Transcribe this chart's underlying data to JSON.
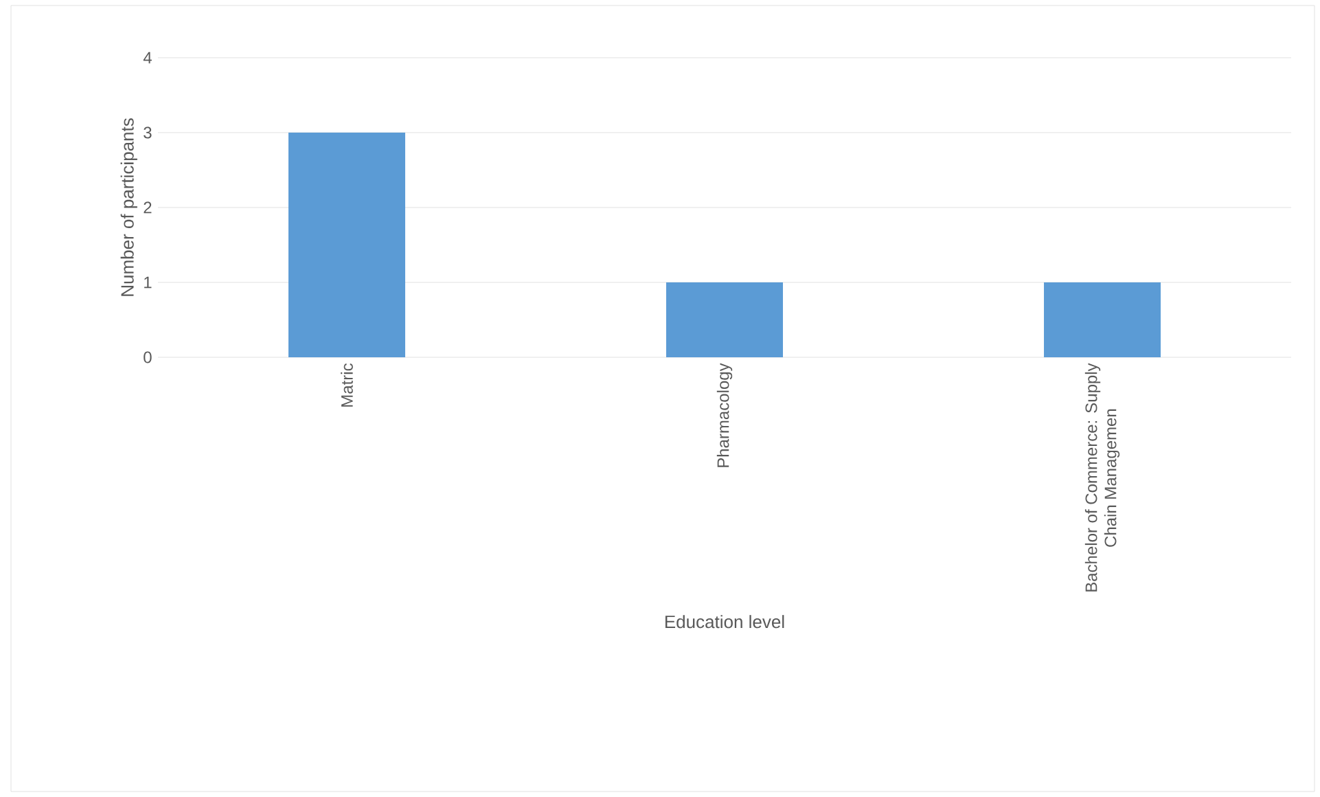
{
  "chart_data": {
    "type": "bar",
    "categories": [
      "Matric",
      "Pharmacology",
      "Bachelor of Commerce: Supply Chain Managemen"
    ],
    "values": [
      3,
      1,
      1
    ],
    "color": "#5b9bd5",
    "xlabel": "Education level",
    "ylabel": "Number of participants",
    "ylim": [
      0,
      4
    ],
    "yticks": [
      0,
      1,
      2,
      3,
      4
    ],
    "grid": "y"
  }
}
